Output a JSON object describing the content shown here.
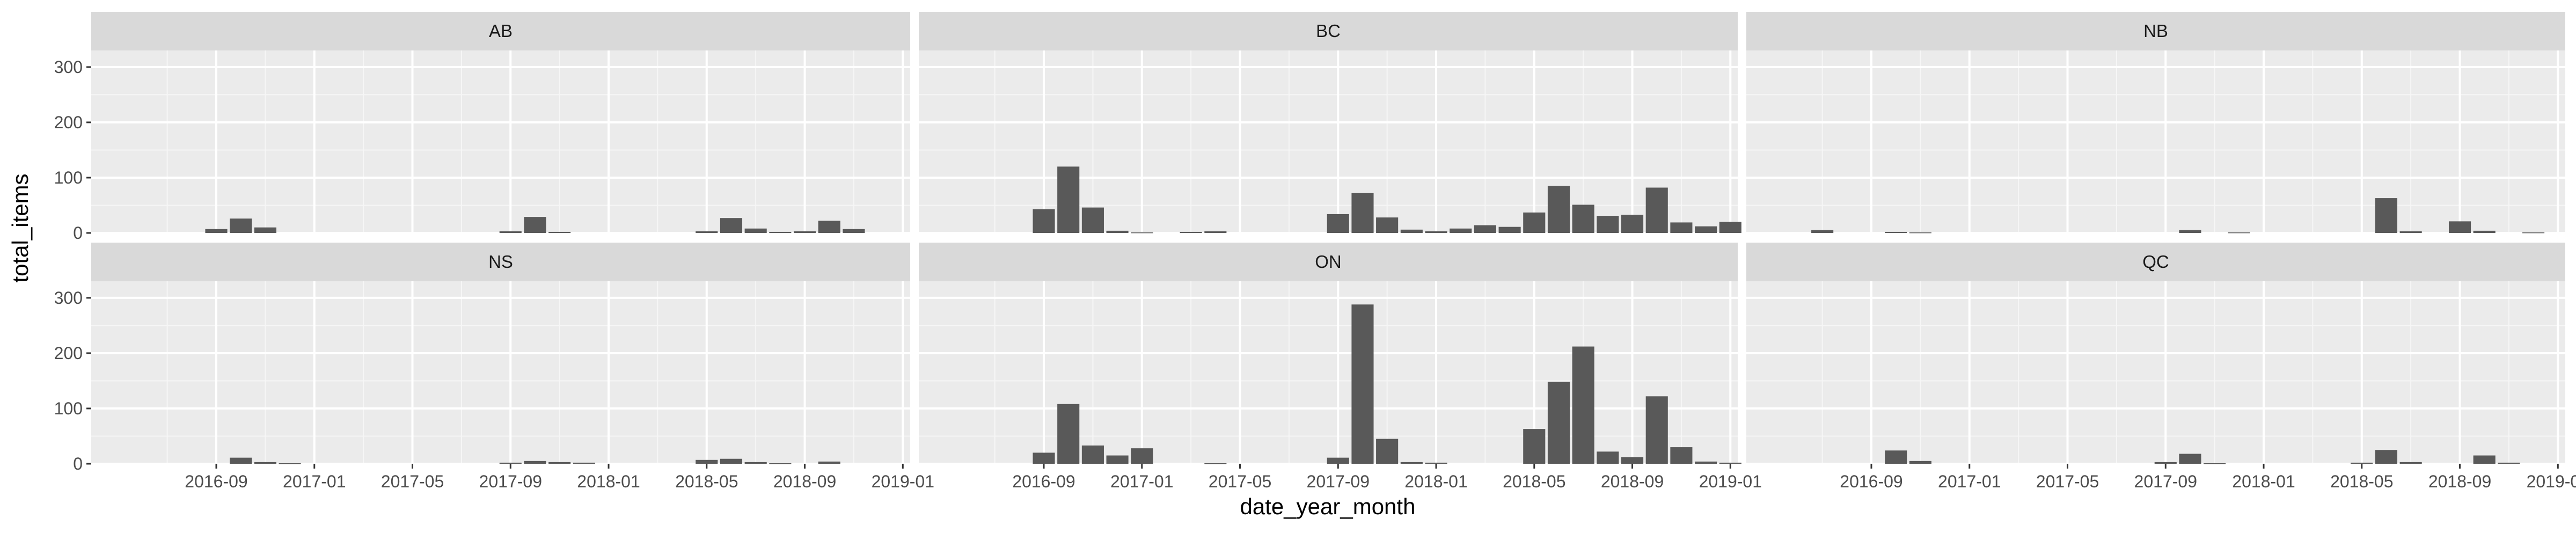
{
  "chart_data": {
    "type": "bar",
    "facet_layout": "2 rows x 3 columns",
    "xlabel": "date_year_month",
    "ylabel": "total_items",
    "ylim": [
      0,
      330
    ],
    "y_ticks": [
      0,
      100,
      200,
      300
    ],
    "x_ticks": [
      "2016-09",
      "2017-01",
      "2017-05",
      "2017-09",
      "2018-01",
      "2018-05",
      "2018-09",
      "2019-01"
    ],
    "x_tick_values": [
      8,
      12,
      16,
      20,
      24,
      28,
      32,
      36
    ],
    "x_range": [
      2.9,
      36.3
    ],
    "bar_color": "#595959",
    "panel_background": "#ebebeb",
    "strip_background": "#d9d9d9",
    "grid": true,
    "facets": [
      {
        "label": "AB",
        "bars": [
          {
            "x": "2016-08",
            "value": 7
          },
          {
            "x": "2016-09",
            "value": 26
          },
          {
            "x": "2016-10",
            "value": 10
          },
          {
            "x": "2017-08",
            "value": 3
          },
          {
            "x": "2017-09",
            "value": 29
          },
          {
            "x": "2017-10",
            "value": 2
          },
          {
            "x": "2018-04",
            "value": 3
          },
          {
            "x": "2018-05",
            "value": 27
          },
          {
            "x": "2018-06",
            "value": 8
          },
          {
            "x": "2018-07",
            "value": 2
          },
          {
            "x": "2018-08",
            "value": 3
          },
          {
            "x": "2018-09",
            "value": 22
          },
          {
            "x": "2018-10",
            "value": 7
          }
        ]
      },
      {
        "label": "BC",
        "bars": [
          {
            "x": "2016-08",
            "value": 43
          },
          {
            "x": "2016-09",
            "value": 120
          },
          {
            "x": "2016-10",
            "value": 46
          },
          {
            "x": "2016-11",
            "value": 4
          },
          {
            "x": "2016-12",
            "value": 1
          },
          {
            "x": "2017-02",
            "value": 2
          },
          {
            "x": "2017-03",
            "value": 3
          },
          {
            "x": "2017-08",
            "value": 34
          },
          {
            "x": "2017-09",
            "value": 72
          },
          {
            "x": "2017-10",
            "value": 28
          },
          {
            "x": "2017-11",
            "value": 6
          },
          {
            "x": "2017-12",
            "value": 3
          },
          {
            "x": "2018-01",
            "value": 8
          },
          {
            "x": "2018-02",
            "value": 14
          },
          {
            "x": "2018-03",
            "value": 11
          },
          {
            "x": "2018-04",
            "value": 37
          },
          {
            "x": "2018-05",
            "value": 85
          },
          {
            "x": "2018-06",
            "value": 51
          },
          {
            "x": "2018-07",
            "value": 31
          },
          {
            "x": "2018-08",
            "value": 33
          },
          {
            "x": "2018-09",
            "value": 82
          },
          {
            "x": "2018-10",
            "value": 19
          },
          {
            "x": "2018-11",
            "value": 12
          },
          {
            "x": "2018-12",
            "value": 20
          }
        ]
      },
      {
        "label": "NB",
        "bars": [
          {
            "x": "2016-06",
            "value": 5
          },
          {
            "x": "2016-09",
            "value": 2
          },
          {
            "x": "2016-10",
            "value": 1
          },
          {
            "x": "2017-09",
            "value": 5
          },
          {
            "x": "2017-11",
            "value": 1
          },
          {
            "x": "2018-05",
            "value": 63
          },
          {
            "x": "2018-06",
            "value": 3
          },
          {
            "x": "2018-08",
            "value": 21
          },
          {
            "x": "2018-09",
            "value": 4
          },
          {
            "x": "2018-11",
            "value": 1
          }
        ]
      },
      {
        "label": "NS",
        "bars": [
          {
            "x": "2016-09",
            "value": 11
          },
          {
            "x": "2016-10",
            "value": 3
          },
          {
            "x": "2016-11",
            "value": 1
          },
          {
            "x": "2017-08",
            "value": 2
          },
          {
            "x": "2017-09",
            "value": 5
          },
          {
            "x": "2017-10",
            "value": 3
          },
          {
            "x": "2017-11",
            "value": 2
          },
          {
            "x": "2018-04",
            "value": 7
          },
          {
            "x": "2018-05",
            "value": 9
          },
          {
            "x": "2018-06",
            "value": 3
          },
          {
            "x": "2018-07",
            "value": 1
          },
          {
            "x": "2018-09",
            "value": 4
          }
        ]
      },
      {
        "label": "ON",
        "bars": [
          {
            "x": "2016-08",
            "value": 20
          },
          {
            "x": "2016-09",
            "value": 108
          },
          {
            "x": "2016-10",
            "value": 33
          },
          {
            "x": "2016-11",
            "value": 15
          },
          {
            "x": "2016-12",
            "value": 28
          },
          {
            "x": "2017-03",
            "value": 1
          },
          {
            "x": "2017-08",
            "value": 11
          },
          {
            "x": "2017-09",
            "value": 288
          },
          {
            "x": "2017-10",
            "value": 45
          },
          {
            "x": "2017-11",
            "value": 3
          },
          {
            "x": "2017-12",
            "value": 2
          },
          {
            "x": "2018-04",
            "value": 63
          },
          {
            "x": "2018-05",
            "value": 148
          },
          {
            "x": "2018-06",
            "value": 212
          },
          {
            "x": "2018-07",
            "value": 22
          },
          {
            "x": "2018-08",
            "value": 12
          },
          {
            "x": "2018-09",
            "value": 122
          },
          {
            "x": "2018-10",
            "value": 30
          },
          {
            "x": "2018-11",
            "value": 4
          },
          {
            "x": "2018-12",
            "value": 2
          }
        ]
      },
      {
        "label": "QC",
        "bars": [
          {
            "x": "2016-09",
            "value": 24
          },
          {
            "x": "2016-10",
            "value": 5
          },
          {
            "x": "2017-08",
            "value": 3
          },
          {
            "x": "2017-09",
            "value": 18
          },
          {
            "x": "2017-10",
            "value": 1
          },
          {
            "x": "2018-04",
            "value": 2
          },
          {
            "x": "2018-05",
            "value": 25
          },
          {
            "x": "2018-06",
            "value": 3
          },
          {
            "x": "2018-09",
            "value": 15
          },
          {
            "x": "2018-10",
            "value": 2
          }
        ]
      }
    ]
  }
}
